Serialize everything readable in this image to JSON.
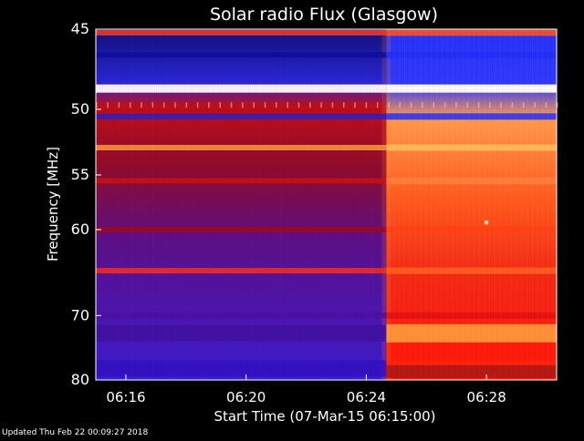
{
  "chart_data": {
    "type": "heatmap",
    "title": "Solar radio Flux (Glasgow)",
    "xlabel": "Start Time (07-Mar-15 06:15:00)",
    "ylabel": "Frequency [MHz]",
    "x_unit": "time",
    "xlim": [
      "06:15:00",
      "06:30:20"
    ],
    "ylim": [
      45,
      80
    ],
    "y_inverted": true,
    "x_ticks": [
      "06:16",
      "06:20",
      "06:24",
      "06:28"
    ],
    "y_ticks": [
      45,
      50,
      55,
      60,
      70,
      80
    ],
    "grid": false,
    "colormap": "blue-red-yellow-white",
    "event": {
      "onset_time": "06:24:40",
      "description_level": "strong broadband emission increase after onset"
    },
    "bands": [
      {
        "freq_mhz": 45.2,
        "before": "#ff4020",
        "after": "#ff5020"
      },
      {
        "freq_mhz": 46.5,
        "before": "#0a0aa0",
        "after": "#1a2cff"
      },
      {
        "freq_mhz": 48.6,
        "before": "#ffffff",
        "after": "#ffffff"
      },
      {
        "freq_mhz": 50.5,
        "before": "#2020d0",
        "after": "#2030ff"
      },
      {
        "freq_mhz": 52.8,
        "before": "#ffa040",
        "after": "#ffc060"
      },
      {
        "freq_mhz": 55.5,
        "before": "#d01010",
        "after": "#ff8040"
      },
      {
        "freq_mhz": 60.0,
        "before": "#a00818",
        "after": "#ff4010"
      },
      {
        "freq_mhz": 64.4,
        "before": "#ff3010",
        "after": "#ff6020"
      },
      {
        "freq_mhz": 70.0,
        "before": "#4a10a0",
        "after": "#e00e10"
      },
      {
        "freq_mhz": 72.5,
        "before": "#4010a0",
        "after": "#ffa040"
      },
      {
        "freq_mhz": 78.0,
        "before": "#3010c0",
        "after": "#ff2010"
      }
    ]
  },
  "footer": {
    "updated": "Updated Thu Feb 22 00:09:27 2018"
  }
}
